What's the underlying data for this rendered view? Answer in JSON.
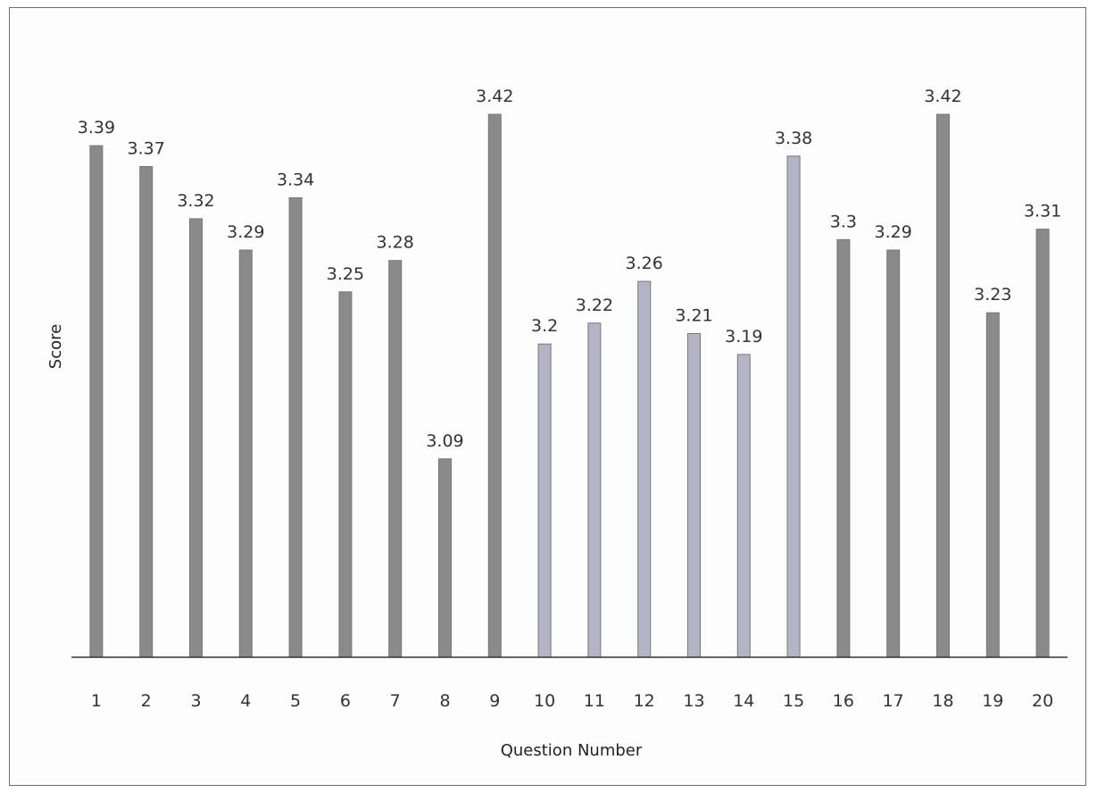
{
  "chart_data": {
    "type": "bar",
    "title": "",
    "xlabel": "Question Number",
    "ylabel": "Score",
    "categories": [
      "1",
      "2",
      "3",
      "4",
      "5",
      "6",
      "7",
      "8",
      "9",
      "10",
      "11",
      "12",
      "13",
      "14",
      "15",
      "16",
      "17",
      "18",
      "19",
      "20"
    ],
    "values": [
      3.39,
      3.37,
      3.32,
      3.29,
      3.34,
      3.25,
      3.28,
      3.09,
      3.42,
      3.2,
      3.22,
      3.26,
      3.21,
      3.19,
      3.38,
      3.3,
      3.29,
      3.42,
      3.23,
      3.31
    ],
    "value_labels": [
      "3.39",
      "3.37",
      "3.32",
      "3.29",
      "3.34",
      "3.25",
      "3.28",
      "3.09",
      "3.42",
      "3.2",
      "3.22",
      "3.26",
      "3.21",
      "3.19",
      "3.38",
      "3.3",
      "3.29",
      "3.42",
      "3.23",
      "3.31"
    ],
    "ylim": [
      2.9,
      3.42
    ],
    "grid": false,
    "legend": "none",
    "colors": {
      "bar_dark": "#8a8a8a",
      "bar_light": "#b4b4c6",
      "axis": "#333333"
    },
    "bar_shades": [
      "dark",
      "dark",
      "dark",
      "dark",
      "dark",
      "dark",
      "dark",
      "dark",
      "dark",
      "light",
      "light",
      "light",
      "light",
      "light",
      "light",
      "dark",
      "dark",
      "dark",
      "dark",
      "dark"
    ]
  }
}
